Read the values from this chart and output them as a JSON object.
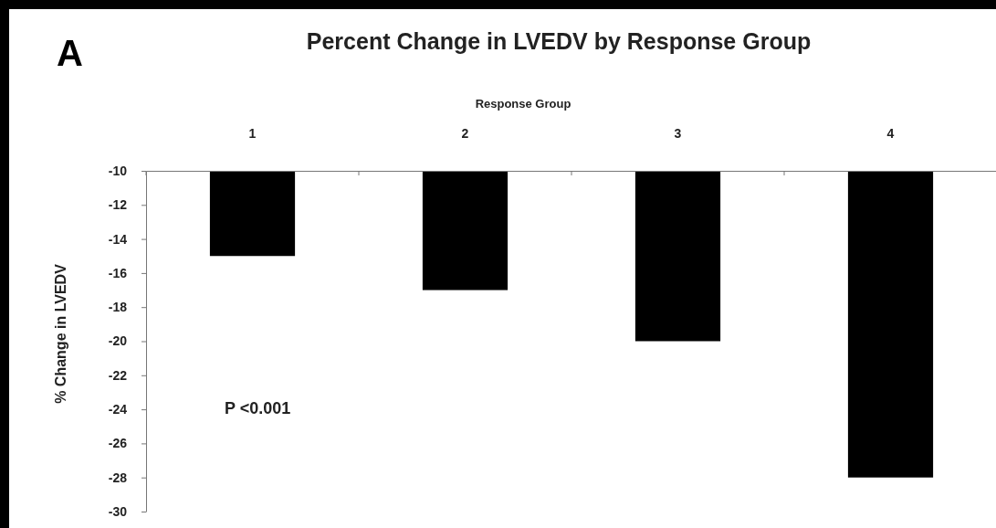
{
  "chart_data": {
    "type": "bar",
    "title": "Percent Change in LVEDV by Response Group",
    "xlabel": "Response Group",
    "ylabel": "% Change in LVEDV",
    "categories": [
      "1",
      "2",
      "3",
      "4"
    ],
    "values": [
      -15,
      -17,
      -20,
      -28
    ],
    "color": "#000000",
    "ylim": [
      -30,
      -10
    ],
    "yticks": [
      -10,
      -12,
      -14,
      -16,
      -18,
      -20,
      -22,
      -24,
      -26,
      -28,
      -30
    ],
    "annotations": [
      "A",
      "P <0.001"
    ]
  }
}
